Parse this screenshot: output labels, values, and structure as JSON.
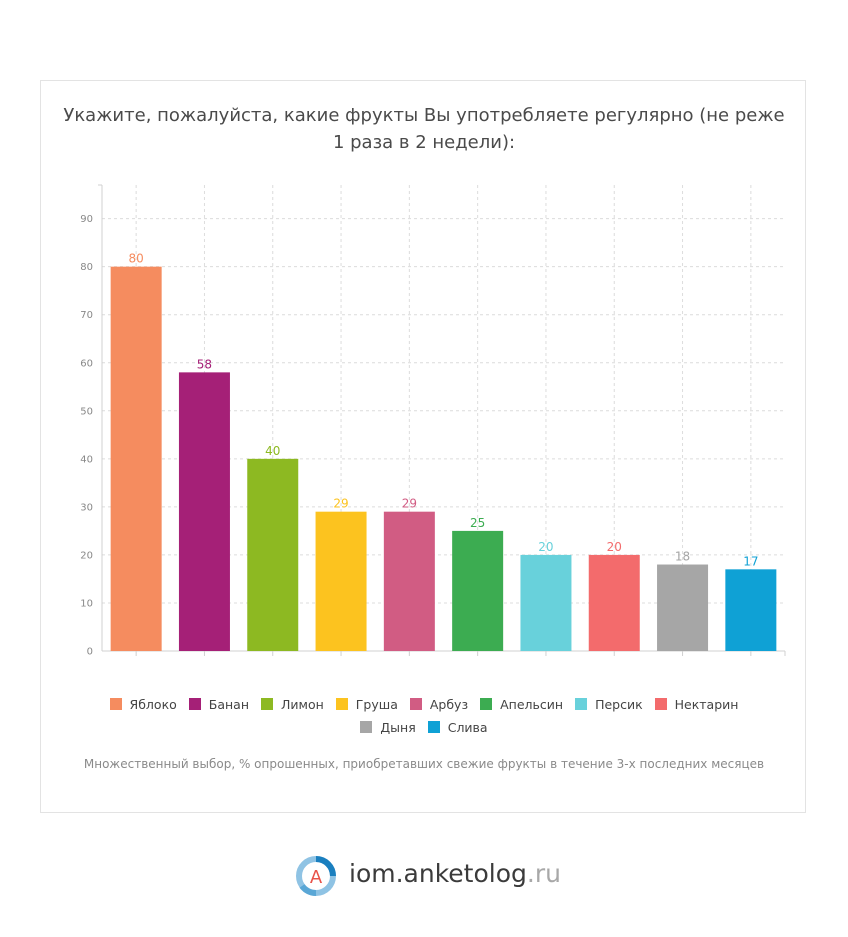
{
  "chart_data": {
    "type": "bar",
    "title_lines": [
      "Укажите, пожалуйста, какие фрукты Вы употребляете регулярно (не реже",
      "1 раза в 2 недели):"
    ],
    "categories": [
      "Яблоко",
      "Банан",
      "Лимон",
      "Груша",
      "Арбуз",
      "Апельсин",
      "Персик",
      "Нектарин",
      "Дыня",
      "Слива"
    ],
    "values": [
      80,
      58,
      40,
      29,
      29,
      25,
      20,
      20,
      18,
      17
    ],
    "colors": [
      "#f58c5f",
      "#a52077",
      "#8db922",
      "#fcc31f",
      "#d15c83",
      "#3cac51",
      "#68d1db",
      "#f36b6c",
      "#a6a6a6",
      "#0fa1d5"
    ],
    "y_ticks": [
      0,
      10,
      20,
      30,
      40,
      50,
      60,
      70,
      80,
      90
    ],
    "ylim": [
      0,
      97
    ],
    "grid": true,
    "legend_position": "bottom",
    "note": "Множественный выбор, % опрошенных, приобретавших свежие фрукты в течение 3-х последних месяцев"
  },
  "brand": {
    "name": "iom.anketolog",
    "tld": ".ru",
    "logo_letter": "A"
  }
}
